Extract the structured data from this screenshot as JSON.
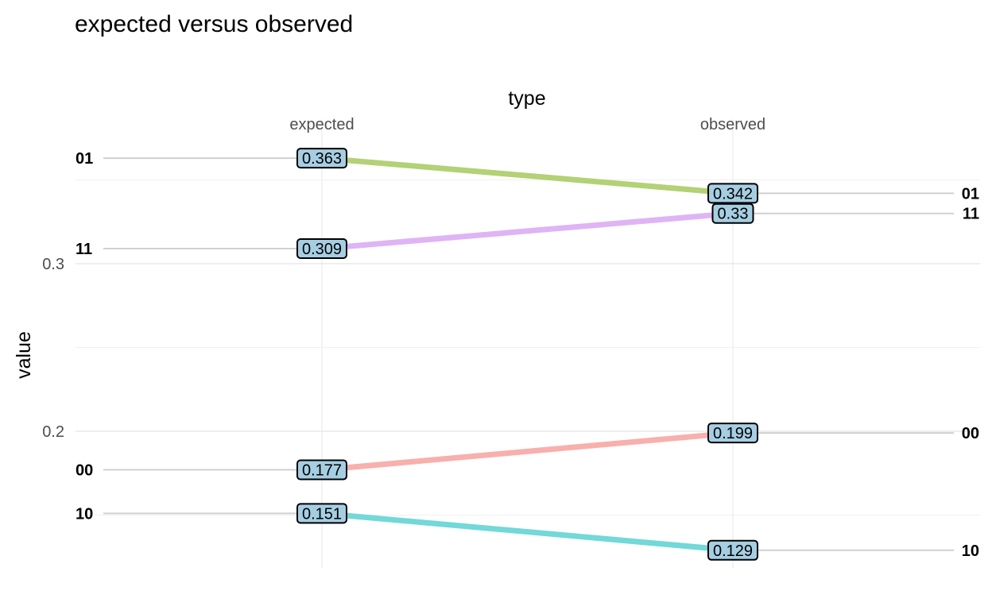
{
  "chart_data": {
    "type": "line",
    "title": "expected versus observed",
    "x_axis_title": "type",
    "ylabel": "value",
    "categories": [
      "expected",
      "observed"
    ],
    "y_ticks": [
      "0.2",
      "0.3"
    ],
    "y_tick_values": [
      0.2,
      0.3
    ],
    "ylim": [
      0.12,
      0.38
    ],
    "grid": true,
    "series": [
      {
        "name": "01",
        "values": [
          0.363,
          0.342
        ],
        "labels": [
          "0.363",
          "0.342"
        ],
        "color": "#b3d175"
      },
      {
        "name": "11",
        "values": [
          0.309,
          0.33
        ],
        "labels": [
          "0.309",
          "0.33"
        ],
        "color": "#dfb4f5"
      },
      {
        "name": "00",
        "values": [
          0.177,
          0.199
        ],
        "labels": [
          "0.177",
          "0.199"
        ],
        "color": "#f8b0ad"
      },
      {
        "name": "10",
        "values": [
          0.151,
          0.129
        ],
        "labels": [
          "0.151",
          "0.129"
        ],
        "color": "#72d8d8"
      }
    ],
    "label_fill": "#a6cee3",
    "reference_line_color": "#d0d0d0"
  }
}
